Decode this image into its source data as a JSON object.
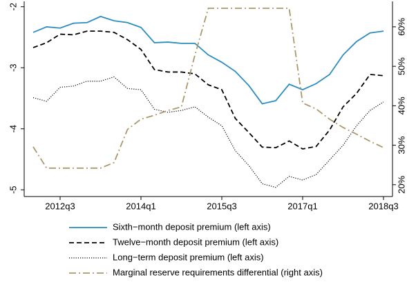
{
  "chart_data": {
    "type": "line",
    "categories": [
      null,
      null,
      "2012q3",
      null,
      null,
      null,
      null,
      null,
      "2014q1",
      null,
      null,
      null,
      null,
      null,
      "2015q3",
      null,
      null,
      null,
      null,
      null,
      "2017q1",
      null,
      null,
      null,
      null,
      null,
      "2018q3"
    ],
    "ylim": [
      -5.11,
      -1.89
    ],
    "yticks": [
      -2,
      -3,
      -4,
      -5
    ],
    "y2lim": [
      17.0,
      66.8
    ],
    "y2ticks": [
      {
        "value": 20,
        "label": "20%"
      },
      {
        "value": 30,
        "label": "30%"
      },
      {
        "value": 40,
        "label": "40%"
      },
      {
        "value": 50,
        "label": "50%"
      },
      {
        "value": 60,
        "label": "60%"
      }
    ],
    "series": [
      {
        "name": "Sixth−month deposit premium (left axis)",
        "color": "#2a8cbf",
        "style": "solid",
        "values": [
          -2.42,
          -2.33,
          -2.35,
          -2.27,
          -2.26,
          -2.16,
          -2.23,
          -2.26,
          -2.34,
          -2.59,
          -2.58,
          -2.6,
          -2.6,
          -2.79,
          -2.91,
          -3.06,
          -3.29,
          -3.59,
          -3.54,
          -3.27,
          -3.36,
          -3.26,
          -3.11,
          -2.79,
          -2.57,
          -2.43,
          -2.4
        ]
      },
      {
        "name": "Twelve−month deposit premium (left axis)",
        "color": "#000000",
        "style": "dashed",
        "values": [
          -2.67,
          -2.59,
          -2.45,
          -2.46,
          -2.4,
          -2.4,
          -2.42,
          -2.54,
          -2.7,
          -3.03,
          -3.07,
          -3.07,
          -3.1,
          -3.28,
          -3.36,
          -3.83,
          -4.06,
          -4.3,
          -4.31,
          -4.2,
          -4.33,
          -4.29,
          -4.02,
          -3.64,
          -3.42,
          -3.11,
          -3.13
        ]
      },
      {
        "name": "Long−term deposit premium (left axis)",
        "color": "#000000",
        "style": "dotted",
        "values": [
          -3.49,
          -3.55,
          -3.32,
          -3.3,
          -3.22,
          -3.22,
          -3.15,
          -3.34,
          -3.36,
          -3.68,
          -3.73,
          -3.7,
          -3.64,
          -3.81,
          -3.95,
          -4.36,
          -4.6,
          -4.9,
          -4.96,
          -4.78,
          -4.84,
          -4.75,
          -4.51,
          -4.27,
          -3.95,
          -3.7,
          -3.56
        ]
      },
      {
        "name": "Marginal reserve requirements differential (right axis)",
        "color": "#a8996a",
        "style": "dashdot",
        "axis": "y2",
        "values": [
          29.6,
          24.2,
          24.2,
          24.2,
          24.2,
          24.2,
          25.6,
          34.0,
          36.6,
          37.6,
          38.8,
          39.7,
          52.8,
          64.7,
          64.7,
          64.7,
          64.7,
          64.7,
          64.7,
          64.7,
          40.7,
          39.2,
          36.6,
          34.5,
          32.8,
          31.0,
          29.4
        ]
      }
    ]
  }
}
